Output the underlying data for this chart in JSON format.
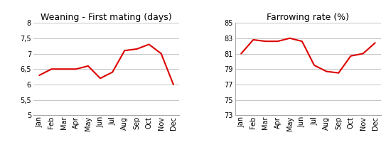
{
  "months": [
    "Jan",
    "Feb",
    "Mar",
    "Apr",
    "May",
    "Jun",
    "Jul",
    "Aug",
    "Sep",
    "Oct",
    "Nov",
    "Dec"
  ],
  "left_title": "Weaning - First mating (days)",
  "left_values": [
    6.3,
    6.5,
    6.5,
    6.5,
    6.6,
    6.2,
    6.4,
    7.1,
    7.15,
    7.3,
    7.0,
    6.0
  ],
  "left_ylim": [
    5,
    8
  ],
  "left_yticks": [
    5,
    5.5,
    6,
    6.5,
    7,
    7.5,
    8
  ],
  "left_ytick_labels": [
    "5",
    "5,5",
    "6",
    "6,5",
    "7",
    "7,5",
    "8"
  ],
  "right_title": "Farrowing rate (%)",
  "right_values": [
    81.0,
    82.8,
    82.6,
    82.6,
    83.0,
    82.6,
    79.5,
    78.7,
    78.5,
    80.7,
    81.0,
    82.4
  ],
  "right_ylim": [
    73,
    85
  ],
  "right_yticks": [
    73,
    75,
    77,
    79,
    81,
    83,
    85
  ],
  "right_ytick_labels": [
    "73",
    "75",
    "77",
    "79",
    "81",
    "83",
    "85"
  ],
  "line_color": "#dd0000",
  "line_width": 1.5,
  "bg_color": "#ffffff",
  "grid_color": "#bbbbbb",
  "title_fontsize": 9,
  "tick_fontsize": 7
}
